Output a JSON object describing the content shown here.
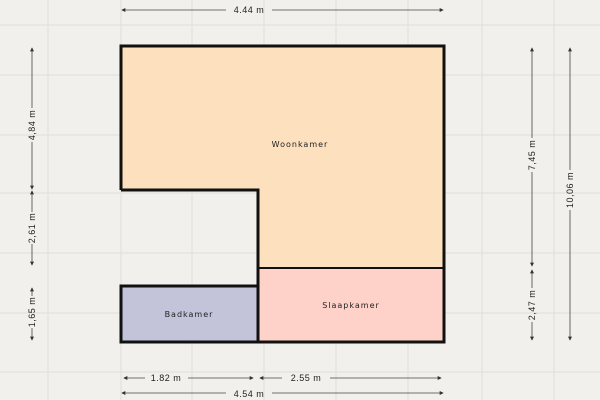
{
  "rooms": {
    "woonkamer": {
      "label": "Woonkamer",
      "color": "#fde0bd"
    },
    "slaapkamer": {
      "label": "Slaapkamer",
      "color": "#fed1c9"
    },
    "badkamer": {
      "label": "Badkamer",
      "color": "#c3c3d9"
    }
  },
  "dimensions": {
    "top_width": "4.44 m",
    "left_upper": "4,84 m",
    "left_middle": "2,61 m",
    "left_lower": "1,65 m",
    "right_upper": "7,45 m",
    "right_lower": "2,47 m",
    "right_total": "10,06 m",
    "bottom_left": "1.82 m",
    "bottom_right": "2.55 m",
    "bottom_total": "4.54 m"
  },
  "colors": {
    "background": "#f1f0ec",
    "wall": "#111111"
  }
}
